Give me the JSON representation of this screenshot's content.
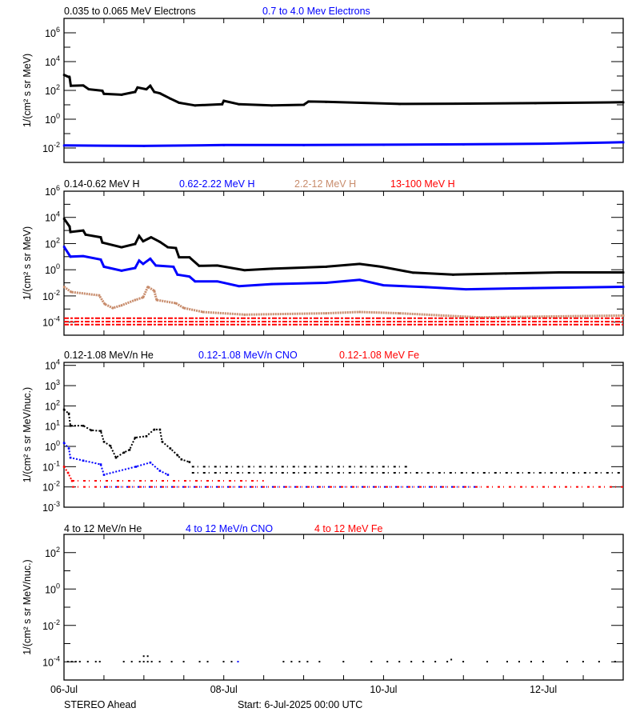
{
  "footer": {
    "spacecraft": "STEREO Ahead",
    "start_label": "Start:  6-Jul-2025 00:00 UTC"
  },
  "chart_data": [
    {
      "type": "scatter",
      "xlabel_ticks": [
        "06-Jul",
        "08-Jul",
        "10-Jul",
        "12-Jul"
      ],
      "xlim_days": [
        0,
        7
      ],
      "ylabel": "1/(cm² s sr MeV)",
      "ylog": true,
      "ylim": [
        0.001,
        10000000
      ],
      "ytick_exponents": [
        6,
        4,
        2,
        0,
        -2
      ],
      "series": [
        {
          "name": "0.035 to 0.065 MeV Electrons",
          "color": "#000000",
          "points": [
            [
              0,
              1200
            ],
            [
              0.07,
              800
            ],
            [
              0.085,
              210
            ],
            [
              0.24,
              220
            ],
            [
              0.31,
              120
            ],
            [
              0.48,
              95
            ],
            [
              0.5,
              58
            ],
            [
              0.72,
              50
            ],
            [
              0.89,
              78
            ],
            [
              0.92,
              160
            ],
            [
              1.03,
              120
            ],
            [
              1.08,
              210
            ],
            [
              1.13,
              78
            ],
            [
              1.2,
              63
            ],
            [
              1.33,
              27
            ],
            [
              1.44,
              14
            ],
            [
              1.64,
              9
            ],
            [
              1.98,
              11
            ],
            [
              2.0,
              19
            ],
            [
              2.19,
              11
            ],
            [
              2.6,
              9
            ],
            [
              3.0,
              10
            ],
            [
              3.06,
              17
            ],
            [
              3.28,
              16
            ],
            [
              4.2,
              11.5
            ],
            [
              4.9,
              12
            ],
            [
              5.9,
              13
            ],
            [
              7.0,
              15
            ]
          ]
        },
        {
          "name": "0.7 to 4.0 Mev Electrons",
          "color": "#0000ff",
          "points": [
            [
              0,
              0.015
            ],
            [
              1,
              0.014
            ],
            [
              2,
              0.016
            ],
            [
              3,
              0.016
            ],
            [
              4,
              0.017
            ],
            [
              5,
              0.018
            ],
            [
              6,
              0.02
            ],
            [
              7.0,
              0.025
            ]
          ]
        }
      ]
    },
    {
      "type": "scatter",
      "xlim_days": [
        0,
        7
      ],
      "ylabel": "1/(cm² s sr MeV)",
      "ylog": true,
      "ylim": [
        1e-05,
        1000000
      ],
      "ytick_exponents": [
        6,
        4,
        2,
        0,
        -2,
        -4
      ],
      "series": [
        {
          "name": "0.14-0.62 MeV H",
          "color": "#000000",
          "points": [
            [
              0,
              8000
            ],
            [
              0.07,
              2000
            ],
            [
              0.08,
              760
            ],
            [
              0.24,
              1000
            ],
            [
              0.27,
              480
            ],
            [
              0.46,
              300
            ],
            [
              0.48,
              120
            ],
            [
              0.72,
              52
            ],
            [
              0.89,
              93
            ],
            [
              0.94,
              380
            ],
            [
              0.99,
              150
            ],
            [
              1.09,
              300
            ],
            [
              1.2,
              135
            ],
            [
              1.3,
              52
            ],
            [
              1.4,
              46
            ],
            [
              1.44,
              9
            ],
            [
              1.57,
              9
            ],
            [
              1.69,
              2
            ],
            [
              1.92,
              2.1
            ],
            [
              2.26,
              0.93
            ],
            [
              2.6,
              1.2
            ],
            [
              3.28,
              1.7
            ],
            [
              3.7,
              2.8
            ],
            [
              3.97,
              1.7
            ],
            [
              4.37,
              0.6
            ],
            [
              4.87,
              0.42
            ],
            [
              5.53,
              0.52
            ],
            [
              6.2,
              0.63
            ],
            [
              7.0,
              0.63
            ]
          ]
        },
        {
          "name": "0.62-2.22 MeV H",
          "color": "#0000ff",
          "points": [
            [
              0,
              58
            ],
            [
              0.08,
              10
            ],
            [
              0.24,
              11
            ],
            [
              0.46,
              6
            ],
            [
              0.5,
              1.7
            ],
            [
              0.72,
              0.85
            ],
            [
              0.89,
              1.35
            ],
            [
              0.94,
              5
            ],
            [
              0.99,
              2.8
            ],
            [
              1.08,
              7
            ],
            [
              1.15,
              2.1
            ],
            [
              1.37,
              1.7
            ],
            [
              1.42,
              0.42
            ],
            [
              1.57,
              0.3
            ],
            [
              1.64,
              0.13
            ],
            [
              1.92,
              0.13
            ],
            [
              2.19,
              0.056
            ],
            [
              2.6,
              0.08
            ],
            [
              3.28,
              0.1
            ],
            [
              3.7,
              0.17
            ],
            [
              4.0,
              0.065
            ],
            [
              4.53,
              0.047
            ],
            [
              5.03,
              0.032
            ],
            [
              5.87,
              0.04
            ],
            [
              7.0,
              0.05
            ]
          ]
        },
        {
          "name": "2.2-12 MeV H",
          "color": "#c88c6c",
          "points": [
            [
              0,
              0.05
            ],
            [
              0.09,
              0.02
            ],
            [
              0.44,
              0.011
            ],
            [
              0.51,
              0.0024
            ],
            [
              0.61,
              0.0012
            ],
            [
              0.72,
              0.0019
            ],
            [
              0.89,
              0.0049
            ],
            [
              0.99,
              0.0078
            ],
            [
              1.05,
              0.05
            ],
            [
              1.13,
              0.025
            ],
            [
              1.16,
              0.0049
            ],
            [
              1.4,
              0.0028
            ],
            [
              1.5,
              0.0012
            ],
            [
              1.74,
              0.00059
            ],
            [
              2.26,
              0.00037
            ],
            [
              3.28,
              0.00047
            ],
            [
              3.7,
              0.00059
            ],
            [
              4.2,
              0.00047
            ],
            [
              5.2,
              0.00023
            ],
            [
              7.0,
              0.00032
            ]
          ]
        },
        {
          "name": "13-100 MeV H",
          "color": "#ff0000",
          "levels": [
            0.0002,
            0.00011,
            6.5e-05
          ],
          "level_range_days": [
            0,
            7
          ]
        }
      ]
    },
    {
      "type": "scatter",
      "xlim_days": [
        0,
        7
      ],
      "ylabel": "1/(cm² s sr MeV/nuc.)",
      "ylog": true,
      "ylim": [
        0.001,
        14000
      ],
      "ytick_exponents": [
        4,
        3,
        2,
        1,
        0,
        -1,
        -2,
        -3
      ],
      "series": [
        {
          "name": "0.12-1.08 MeV/n He",
          "color": "#000000",
          "points": [
            [
              0,
              66
            ],
            [
              0.06,
              42
            ],
            [
              0.08,
              10.5
            ],
            [
              0.24,
              10.5
            ],
            [
              0.34,
              6.3
            ],
            [
              0.46,
              5.8
            ],
            [
              0.5,
              1.7
            ],
            [
              0.58,
              1.07
            ],
            [
              0.65,
              0.28
            ],
            [
              0.75,
              0.5
            ],
            [
              0.82,
              0.68
            ],
            [
              0.89,
              2.7
            ],
            [
              1.03,
              3.2
            ],
            [
              1.13,
              6.8
            ],
            [
              1.2,
              6.8
            ],
            [
              1.23,
              1.7
            ],
            [
              1.33,
              0.8
            ],
            [
              1.42,
              0.37
            ],
            [
              1.47,
              0.23
            ],
            [
              1.57,
              0.17
            ]
          ],
          "levels": [
            {
              "value": 0.1,
              "from": 1.6,
              "to": 4.3
            },
            {
              "value": 0.05,
              "from": 1.6,
              "to": 7.0
            }
          ]
        },
        {
          "name": "0.12-1.08 MeV/n CNO",
          "color": "#0000ff",
          "points": [
            [
              0,
              1.5
            ],
            [
              0.06,
              0.8
            ],
            [
              0.08,
              0.28
            ],
            [
              0.24,
              0.2
            ],
            [
              0.46,
              0.13
            ],
            [
              0.5,
              0.04
            ],
            [
              0.9,
              0.1
            ],
            [
              1.08,
              0.16
            ],
            [
              1.2,
              0.063
            ],
            [
              1.3,
              0.04
            ]
          ],
          "levels": [
            {
              "value": 0.01,
              "from": 0.5,
              "to": 5.2
            }
          ]
        },
        {
          "name": "0.12-1.08 MeV Fe",
          "color": "#ff0000",
          "points": [
            [
              0,
              0.1
            ],
            [
              0.05,
              0.05
            ],
            [
              0.1,
              0.02
            ]
          ],
          "levels": [
            {
              "value": 0.02,
              "from": 0.1,
              "to": 2.5
            },
            {
              "value": 0.01,
              "from": 0.1,
              "to": 7.0
            }
          ]
        }
      ]
    },
    {
      "type": "scatter",
      "xlim_days": [
        0,
        7
      ],
      "ylabel": "1/(cm² s sr MeV/nuc.)",
      "ylog": true,
      "ylim": [
        1e-05,
        1000
      ],
      "ytick_exponents": [
        2,
        0,
        -2,
        -4
      ],
      "series": [
        {
          "name": "4 to 12 MeV/n He",
          "color": "#000000",
          "points": [
            [
              0.05,
              0.0001
            ],
            [
              0.1,
              0.0001
            ],
            [
              0.15,
              0.0001
            ],
            [
              0.2,
              0.0001
            ],
            [
              0.3,
              0.0001
            ],
            [
              0.4,
              0.0001
            ],
            [
              0.45,
              0.0001
            ],
            [
              0.75,
              0.0001
            ],
            [
              0.85,
              0.0001
            ],
            [
              0.95,
              0.0001
            ],
            [
              1.0,
              0.0002
            ],
            [
              1.05,
              0.0002
            ],
            [
              1.0,
              0.0001
            ],
            [
              1.05,
              0.0001
            ],
            [
              1.1,
              0.0001
            ],
            [
              1.2,
              0.0001
            ],
            [
              1.35,
              0.0001
            ],
            [
              1.5,
              0.0001
            ],
            [
              1.7,
              0.0001
            ],
            [
              1.8,
              0.0001
            ],
            [
              2.0,
              0.0001
            ],
            [
              2.1,
              0.0001
            ],
            [
              2.75,
              0.0001
            ],
            [
              2.85,
              0.0001
            ],
            [
              2.95,
              0.0001
            ],
            [
              3.05,
              0.0001
            ],
            [
              3.2,
              0.0001
            ],
            [
              3.5,
              0.0001
            ],
            [
              3.85,
              0.0001
            ],
            [
              4.05,
              0.0001
            ],
            [
              4.2,
              0.0001
            ],
            [
              4.35,
              0.0001
            ],
            [
              4.5,
              0.0001
            ],
            [
              4.65,
              0.0001
            ],
            [
              4.8,
              0.0001
            ],
            [
              4.85,
              0.00013
            ],
            [
              5.0,
              0.0001
            ],
            [
              5.3,
              0.0001
            ],
            [
              5.55,
              0.0001
            ],
            [
              5.7,
              0.0001
            ],
            [
              5.85,
              0.0001
            ],
            [
              6.0,
              0.0001
            ],
            [
              6.3,
              0.0001
            ],
            [
              6.5,
              0.0001
            ],
            [
              6.7,
              0.0001
            ],
            [
              6.9,
              0.0001
            ]
          ]
        },
        {
          "name": "4 to 12 MeV/n CNO",
          "color": "#0000ff",
          "points": [
            [
              2.18,
              0.0001
            ]
          ]
        },
        {
          "name": "4 to 12 MeV Fe",
          "color": "#ff0000",
          "points": []
        }
      ]
    }
  ]
}
